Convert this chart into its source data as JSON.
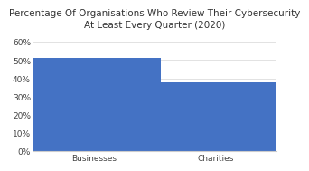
{
  "title": "Percentage Of Organisations Who Review Their Cybersecurity\nAt Least Every Quarter (2020)",
  "categories": [
    "Businesses",
    "Charities"
  ],
  "values": [
    51,
    38
  ],
  "bar_color": "#4472C4",
  "ylim": [
    0,
    65
  ],
  "yticks": [
    0,
    10,
    20,
    30,
    40,
    50,
    60
  ],
  "ytick_labels": [
    "0%",
    "10%",
    "20%",
    "30%",
    "40%",
    "50%",
    "60%"
  ],
  "background_color": "#ffffff",
  "title_fontsize": 7.5,
  "tick_fontsize": 6.5,
  "bar_width": 0.55,
  "bar_positions": [
    0.25,
    0.75
  ],
  "xlim": [
    0.0,
    1.0
  ]
}
